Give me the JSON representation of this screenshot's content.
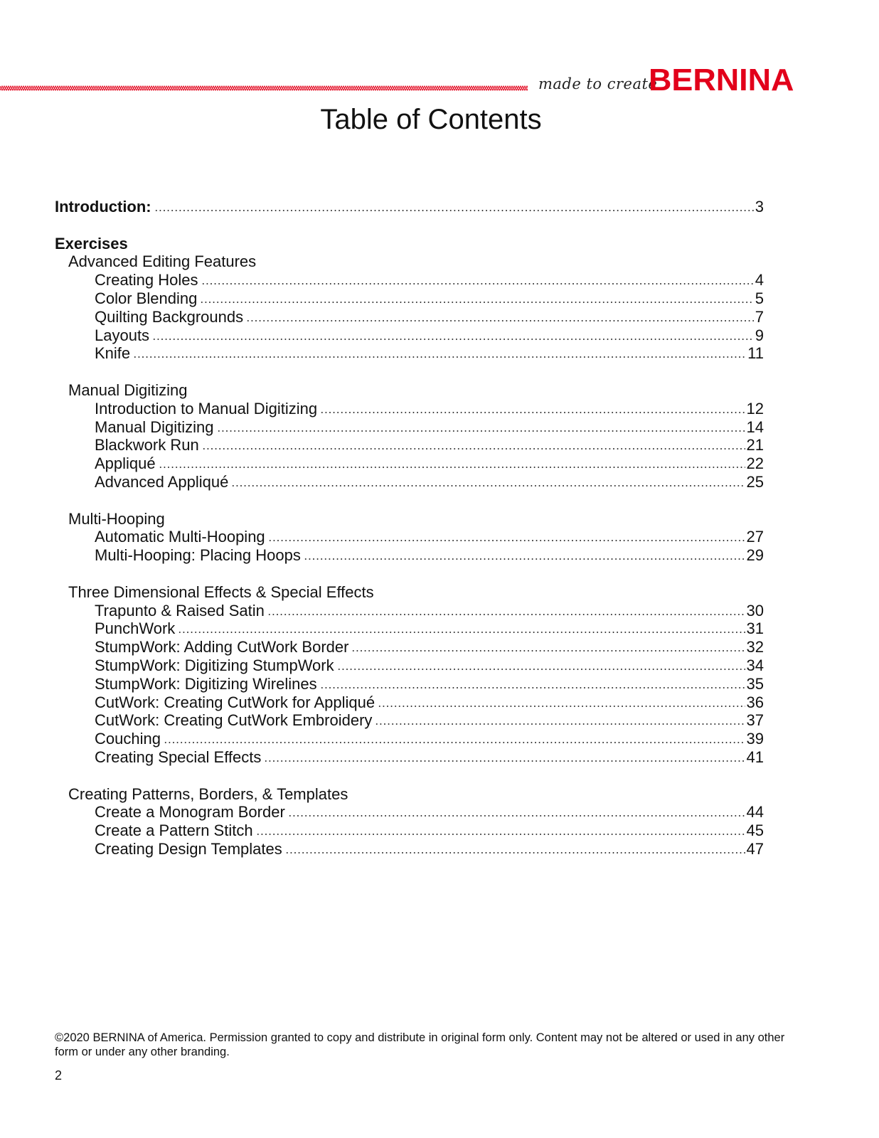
{
  "header": {
    "tagline": "made to create",
    "brand": "BERNINA",
    "brand_color": "#e2001a"
  },
  "title": "Table of Contents",
  "toc": [
    {
      "type": "entry",
      "level": 0,
      "bold": true,
      "label": "Introduction:",
      "page": "3"
    },
    {
      "type": "blank"
    },
    {
      "type": "heading",
      "level": 0,
      "bold": true,
      "label": "Exercises"
    },
    {
      "type": "heading",
      "level": 1,
      "label": "Advanced Editing Features"
    },
    {
      "type": "entry",
      "level": 2,
      "label": "Creating Holes",
      "page": "4"
    },
    {
      "type": "entry",
      "level": 2,
      "label": "Color Blending",
      "page": "5"
    },
    {
      "type": "entry",
      "level": 2,
      "label": "Quilting Backgrounds",
      "page": "7"
    },
    {
      "type": "entry",
      "level": 2,
      "label": "Layouts",
      "page": "9"
    },
    {
      "type": "entry",
      "level": 2,
      "label": "Knife",
      "page": "11"
    },
    {
      "type": "blank"
    },
    {
      "type": "heading",
      "level": 1,
      "label": "Manual Digitizing"
    },
    {
      "type": "entry",
      "level": 2,
      "label": "Introduction to Manual Digitizing",
      "page": "12"
    },
    {
      "type": "entry",
      "level": 2,
      "label": "Manual Digitizing",
      "page": "14"
    },
    {
      "type": "entry",
      "level": 2,
      "label": "Blackwork Run",
      "page": "21"
    },
    {
      "type": "entry",
      "level": 2,
      "label": "Appliqué",
      "page": "22"
    },
    {
      "type": "entry",
      "level": 2,
      "label": "Advanced Appliqué",
      "page": "25"
    },
    {
      "type": "blank"
    },
    {
      "type": "heading",
      "level": 1,
      "label": "Multi-Hooping"
    },
    {
      "type": "entry",
      "level": 2,
      "label": "Automatic Multi-Hooping",
      "page": "27"
    },
    {
      "type": "entry",
      "level": 2,
      "label": "Multi-Hooping:  Placing Hoops",
      "page": "29"
    },
    {
      "type": "blank"
    },
    {
      "type": "heading",
      "level": 1,
      "label": "Three Dimensional Effects & Special Effects"
    },
    {
      "type": "entry",
      "level": 2,
      "label": "Trapunto & Raised Satin",
      "page": "30"
    },
    {
      "type": "entry",
      "level": 2,
      "label": "PunchWork",
      "page": "31"
    },
    {
      "type": "entry",
      "level": 2,
      "label": "StumpWork:  Adding CutWork Border",
      "page": "32"
    },
    {
      "type": "entry",
      "level": 2,
      "label": "StumpWork:  Digitizing StumpWork",
      "page": "34"
    },
    {
      "type": "entry",
      "level": 2,
      "label": "StumpWork:  Digitizing Wirelines",
      "page": "35"
    },
    {
      "type": "entry",
      "level": 2,
      "label": "CutWork:  Creating CutWork for Appliqué",
      "page": "36"
    },
    {
      "type": "entry",
      "level": 2,
      "label": "CutWork:  Creating CutWork Embroidery",
      "page": "37"
    },
    {
      "type": "entry",
      "level": 2,
      "label": "Couching",
      "page": "39"
    },
    {
      "type": "entry",
      "level": 2,
      "label": "Creating Special Effects",
      "page": "41"
    },
    {
      "type": "blank"
    },
    {
      "type": "heading",
      "level": 1,
      "label": "Creating Patterns, Borders, & Templates"
    },
    {
      "type": "entry",
      "level": 2,
      "label": "Create a Monogram Border",
      "page": "44"
    },
    {
      "type": "entry",
      "level": 2,
      "label": "Create a Pattern Stitch",
      "page": "45"
    },
    {
      "type": "entry",
      "level": 2,
      "label": "Creating Design Templates",
      "page": "47"
    }
  ],
  "footer": {
    "copyright": "©2020 BERNINA of America. Permission granted to copy and distribute in original form only. Content may not be altered or used in any other form or under any other branding.",
    "page_number": "2"
  }
}
